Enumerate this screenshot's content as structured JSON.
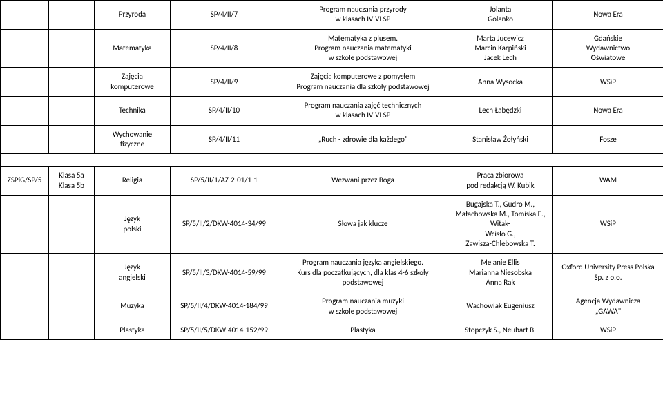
{
  "section1": {
    "rows": [
      {
        "subject": "Przyroda",
        "code": "SP/4/II/7",
        "program": "Program nauczania przyrody\nw klasach IV-VI SP",
        "author": "Jolanta\nGolanko",
        "publisher": "Nowa Era"
      },
      {
        "subject": "Matematyka",
        "code": "SP/4/II/8",
        "program": "Matematyka z plusem.\nProgram nauczania matematyki\nw szkole podstawowej",
        "author": "Marta Jucewicz\nMarcin Karpiński\nJacek Lech",
        "publisher": "Gdańskie\nWydawnictwo\nOświatowe"
      },
      {
        "subject": "Zajęcia\nkomputerowe",
        "code": "SP/4/II/9",
        "program": "Zajęcia komputerowe z pomysłem\nProgram nauczania dla szkoły podstawowej",
        "author": "Anna Wysocka",
        "publisher": "WSiP"
      },
      {
        "subject": "Technika",
        "code": "SP/4/II/10",
        "program": "Program nauczania zajęć technicznych\nw klasach IV-VI SP",
        "author": "Lech Łabędzki",
        "publisher": "Nowa Era"
      },
      {
        "subject": "Wychowanie\nfizyczne",
        "code": "SP/4/II/11",
        "program": "„Ruch - zdrowie dla każdego\"",
        "author": "Stanisław Żołyński",
        "publisher": "Fosze"
      }
    ]
  },
  "section2": {
    "header": {
      "colA": "ZSPiG/SP/5",
      "colB": "Klasa 5a\nKlasa 5b"
    },
    "rows": [
      {
        "subject": "Religia",
        "code": "SP/5/II/1/AZ-2-01/1-1",
        "program": "Wezwani przez Boga",
        "author": "Praca zbiorowa\npod redakcją W. Kubik",
        "publisher": "WAM"
      },
      {
        "subject": "Język\npolski",
        "code": "SP/5/II/2/DKW-4014-34/99",
        "program": "Słowa jak klucze",
        "author": "Bugajska T., Gudro M.,\nMałachowska M., Tomiska E., Witak-\nWcisło G.,\nZawisza-Chlebowska T.",
        "publisher": "WSiP"
      },
      {
        "subject": "Język\nangielski",
        "code": "SP/5/II/3/DKW-4014-59/99",
        "program": "Program nauczania języka angielskiego.\nKurs dla początkujących, dla klas 4-6 szkoły\npodstawowej",
        "author": "Melanie Ellis\nMarianna Niesobska\nAnna Rak",
        "publisher": "Oxford University Press Polska\nSp. z o.o."
      },
      {
        "subject": "Muzyka",
        "code": "SP/5/II/4/DKW-4014-184/99",
        "program": "Program nauczania muzyki\nw szkole podstawowej",
        "author": "Wachowiak Eugeniusz",
        "publisher": "Agencja Wydawnicza\n„GAWA\""
      },
      {
        "subject": "Plastyka",
        "code": "SP/5/II/5/DKW-4014-152/99",
        "program": "Plastyka",
        "author": "Stopczyk S., Neubart B.",
        "publisher": "WSiP"
      }
    ]
  },
  "style": {
    "font_family": "Calibri, Arial, sans-serif",
    "font_size_pt": 11,
    "border_color": "#000000",
    "background": "#ffffff",
    "text_color": "#000000"
  }
}
